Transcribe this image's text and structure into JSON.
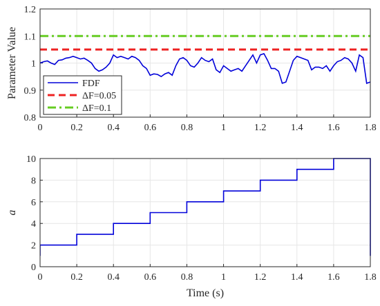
{
  "chart_data": [
    {
      "type": "line",
      "title": "",
      "xlabel": "",
      "ylabel": "Parameter Value",
      "xlim": [
        0,
        1.8
      ],
      "ylim": [
        0.8,
        1.2
      ],
      "xticks": [
        "0",
        "0.2",
        "0.4",
        "0.6",
        "0.8",
        "1",
        "1.2",
        "1.4",
        "1.6",
        "1.8"
      ],
      "yticks": [
        "0.8",
        "0.9",
        "1",
        "1.1",
        "1.2"
      ],
      "grid": true,
      "legend_position": "bottom-left",
      "series": [
        {
          "name": "FDF",
          "color": "#0000d9",
          "style": "solid",
          "x": [
            0,
            0.02,
            0.04,
            0.06,
            0.08,
            0.1,
            0.12,
            0.14,
            0.16,
            0.18,
            0.2,
            0.22,
            0.24,
            0.26,
            0.28,
            0.3,
            0.32,
            0.34,
            0.36,
            0.38,
            0.4,
            0.42,
            0.44,
            0.46,
            0.48,
            0.5,
            0.52,
            0.54,
            0.56,
            0.58,
            0.6,
            0.62,
            0.64,
            0.66,
            0.68,
            0.7,
            0.72,
            0.74,
            0.76,
            0.78,
            0.8,
            0.82,
            0.84,
            0.86,
            0.88,
            0.9,
            0.92,
            0.94,
            0.96,
            0.98,
            1.0,
            1.02,
            1.04,
            1.06,
            1.08,
            1.1,
            1.12,
            1.14,
            1.16,
            1.18,
            1.2,
            1.22,
            1.24,
            1.26,
            1.28,
            1.3,
            1.32,
            1.34,
            1.36,
            1.38,
            1.4,
            1.42,
            1.44,
            1.46,
            1.48,
            1.5,
            1.52,
            1.54,
            1.56,
            1.58,
            1.6,
            1.62,
            1.64,
            1.66,
            1.68,
            1.7,
            1.72,
            1.74,
            1.76,
            1.78,
            1.8
          ],
          "values": [
            1.0,
            1.005,
            1.008,
            1.0,
            0.995,
            1.01,
            1.012,
            1.018,
            1.02,
            1.025,
            1.02,
            1.015,
            1.018,
            1.01,
            1.0,
            0.98,
            0.97,
            0.975,
            0.985,
            1.0,
            1.03,
            1.02,
            1.025,
            1.02,
            1.015,
            1.025,
            1.02,
            1.01,
            0.99,
            0.98,
            0.955,
            0.96,
            0.958,
            0.95,
            0.96,
            0.965,
            0.955,
            0.99,
            1.015,
            1.02,
            1.01,
            0.99,
            0.985,
            1.0,
            1.02,
            1.01,
            1.005,
            1.015,
            0.975,
            0.965,
            0.99,
            0.98,
            0.97,
            0.975,
            0.98,
            0.97,
            0.99,
            1.01,
            1.03,
            1.0,
            1.03,
            1.035,
            1.01,
            0.98,
            0.98,
            0.97,
            0.925,
            0.93,
            0.97,
            1.01,
            1.025,
            1.02,
            1.015,
            1.01,
            0.975,
            0.985,
            0.985,
            0.98,
            0.99,
            0.97,
            0.99,
            1.005,
            1.01,
            1.02,
            1.015,
            1.0,
            0.97,
            1.03,
            1.02,
            0.925,
            0.93
          ]
        },
        {
          "name": "ΔF=0.05",
          "color": "#ee2222",
          "style": "dashed",
          "x": [
            0,
            1.8
          ],
          "values": [
            1.05,
            1.05
          ]
        },
        {
          "name": "ΔF=0.1",
          "color": "#66cc22",
          "style": "dashdot",
          "x": [
            0,
            1.8
          ],
          "values": [
            1.1,
            1.1
          ]
        }
      ]
    },
    {
      "type": "line",
      "title": "",
      "xlabel": "Time (s)",
      "ylabel": "a",
      "xlim": [
        0,
        1.8
      ],
      "ylim": [
        0,
        10
      ],
      "xticks": [
        "0",
        "0.2",
        "0.4",
        "0.6",
        "0.8",
        "1",
        "1.2",
        "1.4",
        "1.6",
        "1.8"
      ],
      "yticks": [
        "0",
        "2",
        "4",
        "6",
        "8",
        "10"
      ],
      "grid": true,
      "series": [
        {
          "color": "#0000d9",
          "style": "step",
          "x": [
            0,
            0,
            0.2,
            0.2,
            0.4,
            0.4,
            0.6,
            0.6,
            0.8,
            0.8,
            1.0,
            1.0,
            1.2,
            1.2,
            1.4,
            1.4,
            1.6,
            1.6,
            1.8,
            1.8
          ],
          "values": [
            1,
            2,
            2,
            3,
            3,
            4,
            4,
            5,
            5,
            6,
            6,
            7,
            7,
            8,
            8,
            9,
            9,
            10,
            10,
            1
          ]
        }
      ]
    }
  ]
}
